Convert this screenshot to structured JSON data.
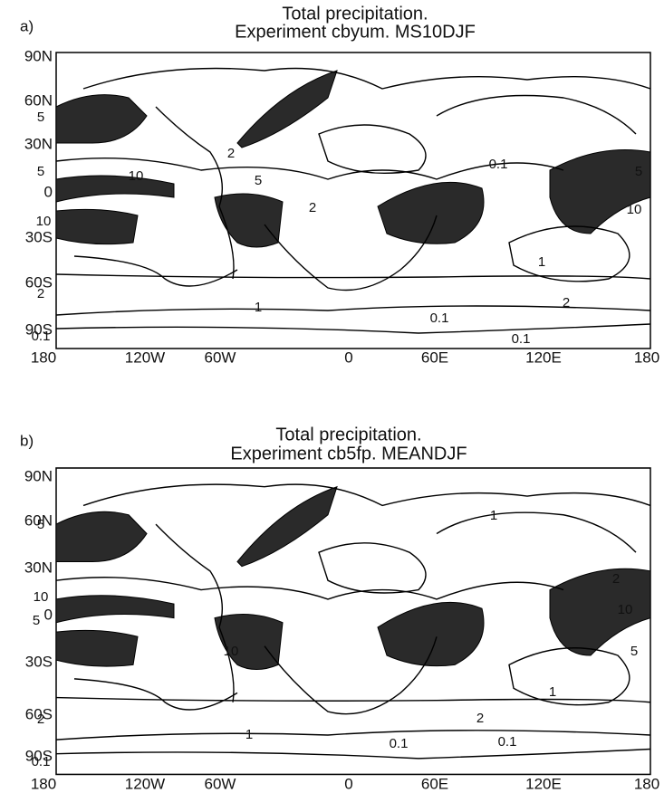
{
  "panels": [
    {
      "label": "a)",
      "title": "Total precipitation.",
      "subtitle": "Experiment cbyum. MS10DJF",
      "y_labels": [
        "90N",
        "60N",
        "30N",
        "0",
        "30S",
        "60S",
        "90S"
      ],
      "x_labels": [
        "180",
        "120W",
        "60W",
        "0",
        "60E",
        "120E",
        "180"
      ],
      "contour_labels": [
        "5",
        "10",
        "5",
        "10",
        "2",
        "5",
        "2",
        "0.1",
        "5",
        "10",
        "1",
        "2",
        "1",
        "2",
        "0.1",
        "0.1",
        "0.1"
      ]
    },
    {
      "label": "b)",
      "title": "Total precipitation.",
      "subtitle": "Experiment cb5fp. MEANDJF",
      "y_labels": [
        "90N",
        "60N",
        "30N",
        "0",
        "30S",
        "60S",
        "90S"
      ],
      "x_labels": [
        "180",
        "120W",
        "60W",
        "0",
        "60E",
        "120E",
        "180"
      ],
      "contour_labels": [
        "5",
        "10",
        "5",
        "10",
        "2",
        "10",
        "5",
        "1",
        "2",
        "2",
        "1",
        "0.1",
        "0.1",
        "0.1",
        "1"
      ]
    }
  ]
}
